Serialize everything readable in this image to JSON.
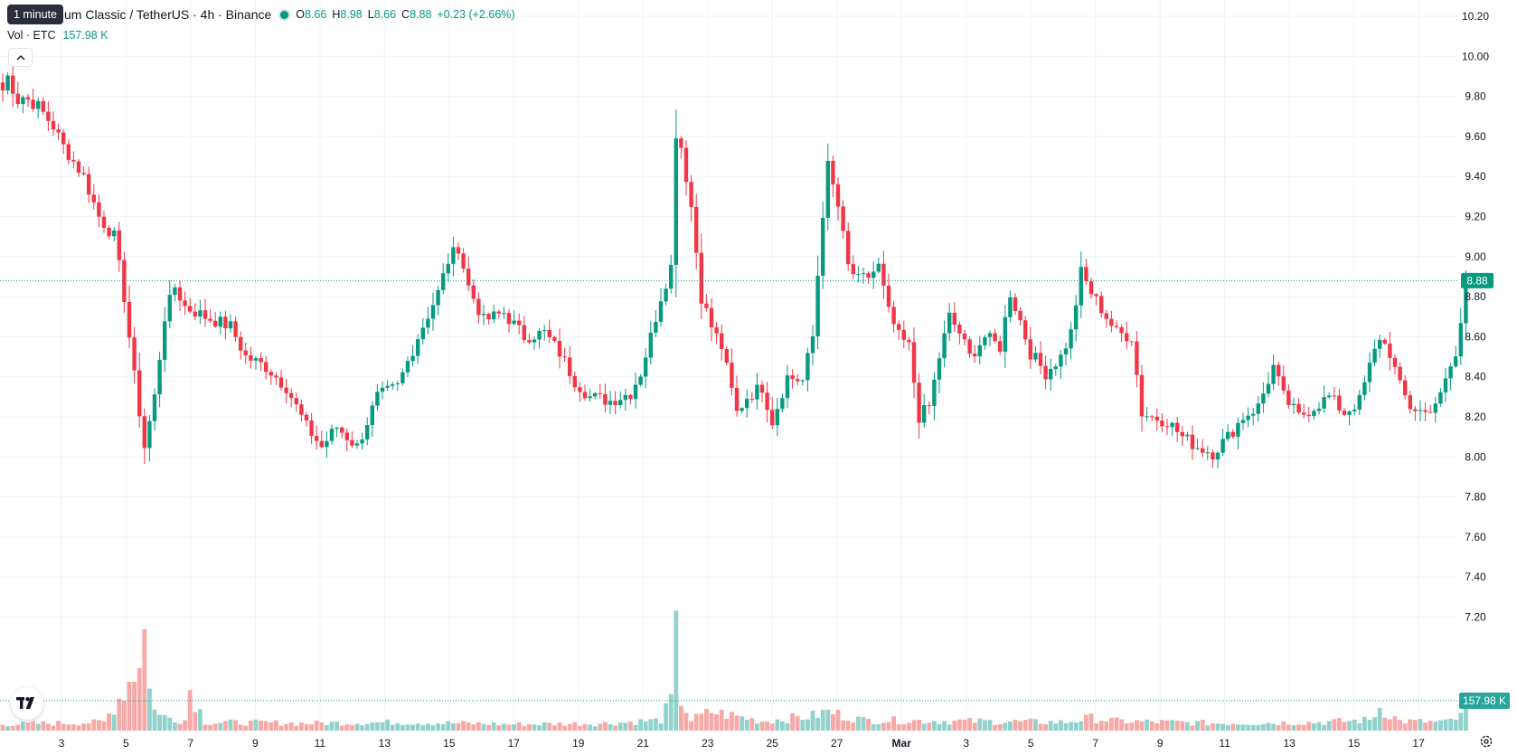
{
  "header": {
    "symbol_title": "um Classic / TetherUS · 4h · Binance",
    "ohlc": [
      {
        "key": "O",
        "value": "8.66"
      },
      {
        "key": "H",
        "value": "8.98"
      },
      {
        "key": "L",
        "value": "8.66"
      },
      {
        "key": "C",
        "value": "8.88"
      }
    ],
    "change": "+0.23 (+2.66%)",
    "tooltip": "1 minute"
  },
  "volume_legend": {
    "label": "Vol · ETC",
    "value": "157.98 K"
  },
  "price_badge": "8.88",
  "volume_badge": "157.98 K",
  "colors": {
    "up": "#089981",
    "down": "#f23645",
    "up_volume": "#92d2cc",
    "down_volume": "#f7a9a7",
    "grid": "#f0f3fa",
    "axis_text": "#131722"
  },
  "icons": {
    "logo": "tradingview-logo-icon",
    "collapse": "chevron-up-icon",
    "settings": "gear-icon"
  },
  "chart_data": {
    "type": "candlestick",
    "title": "",
    "ylabel": "",
    "ylim": [
      7.0,
      10.3
    ],
    "y_ticks": [
      "10.20",
      "10.00",
      "9.80",
      "9.60",
      "9.40",
      "9.20",
      "9.00",
      "8.80",
      "8.60",
      "8.40",
      "8.20",
      "8.00",
      "7.80",
      "7.60",
      "7.40",
      "7.20"
    ],
    "x_ticks": [
      {
        "label": "3",
        "day": 3
      },
      {
        "label": "5",
        "day": 5
      },
      {
        "label": "7",
        "day": 7
      },
      {
        "label": "9",
        "day": 9
      },
      {
        "label": "11",
        "day": 11
      },
      {
        "label": "13",
        "day": 13
      },
      {
        "label": "15",
        "day": 15
      },
      {
        "label": "17",
        "day": 17
      },
      {
        "label": "19",
        "day": 19
      },
      {
        "label": "21",
        "day": 21
      },
      {
        "label": "23",
        "day": 23
      },
      {
        "label": "25",
        "day": 25
      },
      {
        "label": "27",
        "day": 27
      },
      {
        "label": "Mar",
        "day": 29,
        "bold": true
      },
      {
        "label": "3",
        "day": 31
      },
      {
        "label": "5",
        "day": 33
      },
      {
        "label": "7",
        "day": 35
      },
      {
        "label": "9",
        "day": 37
      },
      {
        "label": "11",
        "day": 39
      },
      {
        "label": "13",
        "day": 41
      },
      {
        "label": "15",
        "day": 43
      },
      {
        "label": "17",
        "day": 45
      }
    ],
    "x_range_days": [
      1.1,
      46.2
    ],
    "last_price": 8.88,
    "close_keypoints": [
      [
        0,
        9.83
      ],
      [
        1,
        9.9
      ],
      [
        3,
        9.78
      ],
      [
        4,
        9.8
      ],
      [
        7,
        9.75
      ],
      [
        10,
        9.65
      ],
      [
        12,
        9.55
      ],
      [
        16,
        9.4
      ],
      [
        19,
        9.2
      ],
      [
        22,
        9.1
      ],
      [
        24,
        8.8
      ],
      [
        26,
        8.4
      ],
      [
        28,
        8.05
      ],
      [
        30,
        8.3
      ],
      [
        32,
        8.7
      ],
      [
        34,
        8.85
      ],
      [
        36,
        8.75
      ],
      [
        40,
        8.7
      ],
      [
        45,
        8.65
      ],
      [
        48,
        8.5
      ],
      [
        52,
        8.45
      ],
      [
        56,
        8.35
      ],
      [
        60,
        8.15
      ],
      [
        63,
        8.05
      ],
      [
        66,
        8.15
      ],
      [
        70,
        8.05
      ],
      [
        74,
        8.3
      ],
      [
        78,
        8.35
      ],
      [
        82,
        8.6
      ],
      [
        86,
        8.82
      ],
      [
        88,
        8.98
      ],
      [
        90,
        9.05
      ],
      [
        92,
        8.85
      ],
      [
        95,
        8.68
      ],
      [
        99,
        8.72
      ],
      [
        103,
        8.6
      ],
      [
        107,
        8.62
      ],
      [
        110,
        8.52
      ],
      [
        113,
        8.38
      ],
      [
        116,
        8.3
      ],
      [
        120,
        8.28
      ],
      [
        124,
        8.32
      ],
      [
        126,
        8.42
      ],
      [
        128,
        8.6
      ],
      [
        130,
        8.8
      ],
      [
        132,
        8.95
      ],
      [
        133,
        9.62
      ],
      [
        134,
        9.55
      ],
      [
        136,
        9.25
      ],
      [
        138,
        8.8
      ],
      [
        140,
        8.65
      ],
      [
        142,
        8.55
      ],
      [
        145,
        8.22
      ],
      [
        147,
        8.3
      ],
      [
        150,
        8.35
      ],
      [
        152,
        8.18
      ],
      [
        155,
        8.4
      ],
      [
        158,
        8.38
      ],
      [
        160,
        8.6
      ],
      [
        162,
        9.22
      ],
      [
        163,
        9.45
      ],
      [
        165,
        9.25
      ],
      [
        167,
        8.95
      ],
      [
        169,
        8.88
      ],
      [
        171,
        8.9
      ],
      [
        173,
        8.95
      ],
      [
        175,
        8.72
      ],
      [
        177,
        8.6
      ],
      [
        179,
        8.55
      ],
      [
        181,
        8.2
      ],
      [
        183,
        8.25
      ],
      [
        185,
        8.5
      ],
      [
        187,
        8.7
      ],
      [
        189,
        8.62
      ],
      [
        191,
        8.5
      ],
      [
        194,
        8.6
      ],
      [
        197,
        8.55
      ],
      [
        199,
        8.82
      ],
      [
        201,
        8.68
      ],
      [
        203,
        8.52
      ],
      [
        206,
        8.42
      ],
      [
        209,
        8.5
      ],
      [
        211,
        8.62
      ],
      [
        213,
        8.92
      ],
      [
        215,
        8.82
      ],
      [
        218,
        8.7
      ],
      [
        220,
        8.62
      ],
      [
        223,
        8.6
      ],
      [
        225,
        8.22
      ],
      [
        227,
        8.2
      ],
      [
        230,
        8.18
      ],
      [
        233,
        8.1
      ],
      [
        236,
        8.05
      ],
      [
        239,
        8.02
      ],
      [
        242,
        8.1
      ],
      [
        245,
        8.2
      ],
      [
        248,
        8.25
      ],
      [
        251,
        8.45
      ],
      [
        253,
        8.3
      ],
      [
        256,
        8.2
      ],
      [
        259,
        8.25
      ],
      [
        262,
        8.3
      ],
      [
        265,
        8.22
      ],
      [
        268,
        8.28
      ],
      [
        270,
        8.45
      ],
      [
        272,
        8.6
      ],
      [
        274,
        8.52
      ],
      [
        276,
        8.35
      ],
      [
        278,
        8.25
      ],
      [
        281,
        8.22
      ],
      [
        284,
        8.3
      ],
      [
        286,
        8.45
      ],
      [
        287,
        8.5
      ],
      [
        288,
        8.66
      ],
      [
        289,
        8.88
      ]
    ],
    "volume_keypoints": [
      [
        0,
        6
      ],
      [
        20,
        8
      ],
      [
        26,
        55
      ],
      [
        28,
        95
      ],
      [
        29,
        38
      ],
      [
        31,
        14
      ],
      [
        36,
        10
      ],
      [
        37,
        40
      ],
      [
        40,
        8
      ],
      [
        60,
        7
      ],
      [
        80,
        8
      ],
      [
        100,
        6
      ],
      [
        120,
        7
      ],
      [
        130,
        10
      ],
      [
        132,
        28
      ],
      [
        133,
        85
      ],
      [
        134,
        30
      ],
      [
        136,
        10
      ],
      [
        140,
        18
      ],
      [
        150,
        9
      ],
      [
        160,
        14
      ],
      [
        163,
        18
      ],
      [
        170,
        10
      ],
      [
        190,
        9
      ],
      [
        210,
        8
      ],
      [
        215,
        12
      ],
      [
        220,
        9
      ],
      [
        240,
        7
      ],
      [
        260,
        8
      ],
      [
        270,
        10
      ],
      [
        272,
        22
      ],
      [
        276,
        9
      ],
      [
        285,
        8
      ],
      [
        288,
        13
      ],
      [
        289,
        19
      ]
    ],
    "volume_max": 100
  }
}
